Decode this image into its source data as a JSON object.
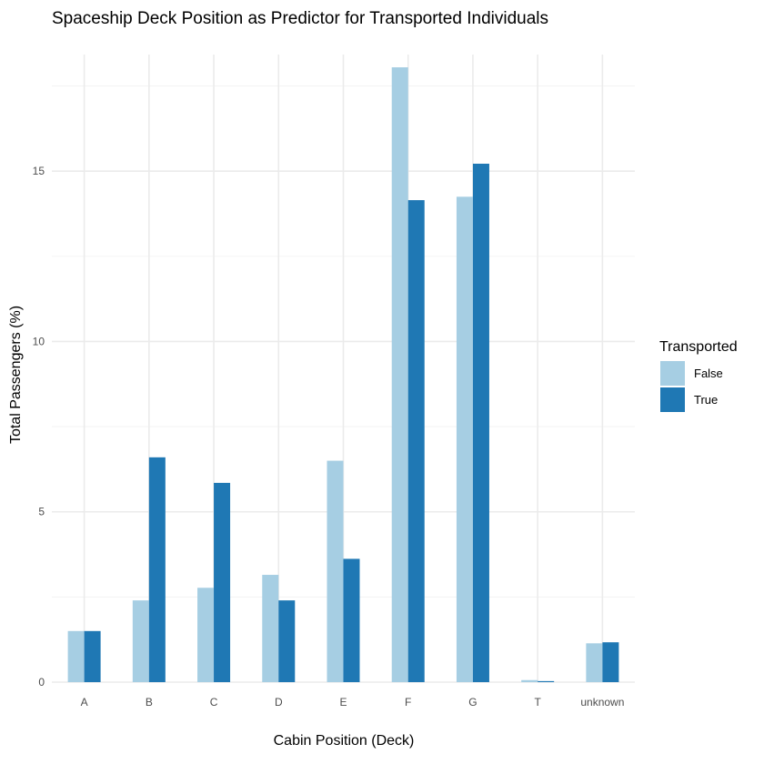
{
  "chart_data": {
    "type": "bar",
    "title": "Spaceship Deck Position as Predictor for Transported Individuals",
    "xlabel": "Cabin Position (Deck)",
    "ylabel": "Total Passengers (%)",
    "categories": [
      "A",
      "B",
      "C",
      "D",
      "E",
      "F",
      "G",
      "T",
      "unknown"
    ],
    "series": [
      {
        "name": "False",
        "color": "#a6cee3",
        "values": [
          1.5,
          2.4,
          2.77,
          3.15,
          6.5,
          18.05,
          14.25,
          0.06,
          1.14
        ]
      },
      {
        "name": "True",
        "color": "#1f78b4",
        "values": [
          1.5,
          6.6,
          5.85,
          2.4,
          3.62,
          14.15,
          15.22,
          0.03,
          1.17
        ]
      }
    ],
    "ylim": [
      0,
      18.05
    ],
    "yticks": [
      0,
      5,
      10,
      15
    ],
    "yticks_labels": [
      "0",
      "5",
      "10",
      "15"
    ],
    "grid": true,
    "legend": {
      "title": "Transported",
      "position": "right"
    }
  }
}
